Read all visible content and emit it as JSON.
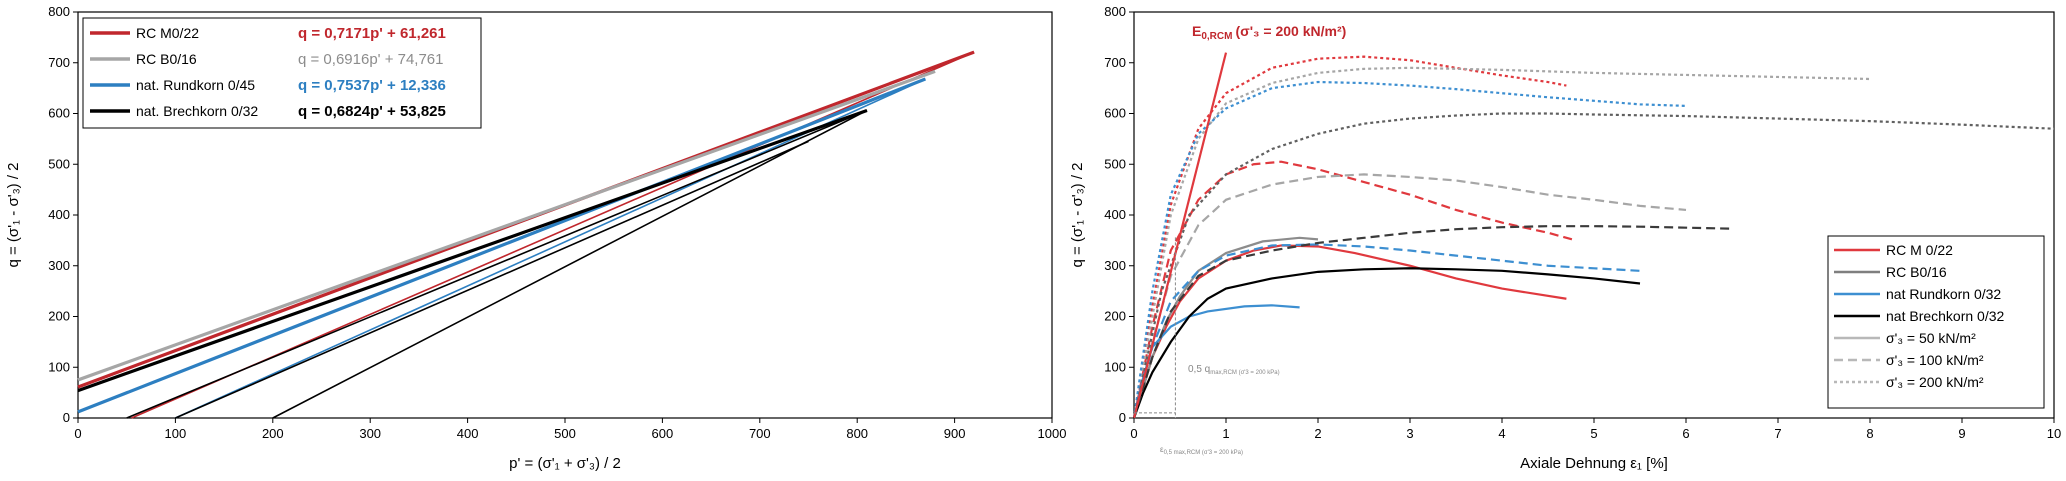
{
  "chart_data": [
    {
      "type": "line",
      "xlabel": "p' = (σ'₁ + σ'₃) / 2",
      "ylabel": "q = (σ'₁ - σ'₃) / 2",
      "xlim": [
        0,
        1000
      ],
      "ylim": [
        0,
        800
      ],
      "x_ticks": [
        "0",
        "100",
        "200",
        "300",
        "400",
        "500",
        "600",
        "700",
        "800",
        "900",
        "1000"
      ],
      "y_ticks": [
        "0",
        "100",
        "200",
        "300",
        "400",
        "500",
        "600",
        "700",
        "800"
      ],
      "grid": false,
      "legend_position": "top-left",
      "series": [
        {
          "name": "RC M0/22",
          "equation": "q = 0,7171p' + 61,261",
          "color": "#c0272d",
          "points": [
            [
              0,
              61
            ],
            [
              920,
              721
            ]
          ],
          "stress_paths": [
            [
              [
                55,
                0
              ],
              [
                920,
                721
              ]
            ]
          ]
        },
        {
          "name": "RC B0/16",
          "equation": "q = 0,6916p' + 74,761",
          "color": "#a6a6a6",
          "points": [
            [
              0,
              75
            ],
            [
              880,
              683
            ]
          ],
          "stress_paths": []
        },
        {
          "name": "nat. Rundkorn 0/45",
          "equation": "q = 0,7537p' + 12,336",
          "color": "#2d7fc1",
          "points": [
            [
              0,
              12
            ],
            [
              870,
              668
            ]
          ],
          "stress_paths": [
            [
              [
                100,
                0
              ],
              [
                870,
                668
              ]
            ]
          ]
        },
        {
          "name": "nat. Brechkorn 0/32",
          "equation": "q = 0,6824p' + 53,825",
          "color": "#000000",
          "points": [
            [
              0,
              54
            ],
            [
              810,
              606
            ]
          ],
          "stress_paths": [
            [
              [
                50,
                0
              ],
              [
                810,
                606
              ]
            ],
            [
              [
                100,
                0
              ],
              [
                750,
                545
              ]
            ],
            [
              [
                200,
                0
              ],
              [
                810,
                606
              ]
            ]
          ]
        }
      ]
    },
    {
      "type": "line",
      "xlabel": "Axiale Dehnung ε₁ [%]",
      "ylabel": "q = (σ'₁ - σ'₃) / 2",
      "xlim": [
        0,
        10
      ],
      "ylim": [
        0,
        800
      ],
      "x_ticks": [
        "0",
        "1",
        "2",
        "3",
        "4",
        "5",
        "6",
        "7",
        "8",
        "9",
        "10"
      ],
      "y_ticks": [
        "0",
        "100",
        "200",
        "300",
        "400",
        "500",
        "600",
        "700",
        "800"
      ],
      "grid": false,
      "legend_position": "bottom-right",
      "annotations": {
        "e_label": "E",
        "e_sub": "0,RCM",
        "e_cond": "(σ'₃ = 200 kN/m²)",
        "half_q_label": "0,5 q",
        "half_q_sub": "max,RCM (σ'3 = 200 kPa)",
        "eps_label": "ε",
        "eps_sub": "0,5 max,RCM (σ'3 = 200 kPa)"
      },
      "legend": {
        "materials": [
          {
            "name": "RC M 0/22",
            "color": "#e0393e"
          },
          {
            "name": "RC B0/16",
            "color": "#7f7f7f"
          },
          {
            "name": "nat Rundkorn 0/32",
            "color": "#3d8fd1"
          },
          {
            "name": "nat Brechkorn 0/32",
            "color": "#000000"
          }
        ],
        "stress_levels": [
          {
            "name": "σ'₃ = 50 kN/m²",
            "dash": "solid"
          },
          {
            "name": "σ'₃ = 100 kN/m²",
            "dash": "dashed"
          },
          {
            "name": "σ'₃ = 200 kN/m²",
            "dash": "dotted"
          }
        ]
      },
      "series": [
        {
          "material": "RC M 0/22",
          "stress": 50,
          "color": "#e0393e",
          "dash": "solid",
          "points": [
            [
              0,
              0
            ],
            [
              0.1,
              60
            ],
            [
              0.2,
              120
            ],
            [
              0.35,
              180
            ],
            [
              0.5,
              230
            ],
            [
              0.7,
              275
            ],
            [
              1.0,
              310
            ],
            [
              1.3,
              330
            ],
            [
              1.6,
              340
            ],
            [
              2.0,
              338
            ],
            [
              2.4,
              325
            ],
            [
              3.0,
              300
            ],
            [
              3.5,
              275
            ],
            [
              4.0,
              255
            ],
            [
              4.7,
              235
            ]
          ]
        },
        {
          "material": "RC M 0/22",
          "stress": 100,
          "color": "#e0393e",
          "dash": "dashed",
          "points": [
            [
              0,
              0
            ],
            [
              0.2,
              180
            ],
            [
              0.4,
              330
            ],
            [
              0.7,
              430
            ],
            [
              1.0,
              480
            ],
            [
              1.3,
              500
            ],
            [
              1.6,
              505
            ],
            [
              2.0,
              490
            ],
            [
              2.5,
              465
            ],
            [
              3.0,
              440
            ],
            [
              3.5,
              410
            ],
            [
              4.0,
              385
            ],
            [
              4.5,
              365
            ],
            [
              4.8,
              350
            ]
          ]
        },
        {
          "material": "RC M 0/22",
          "stress": 200,
          "color": "#e0393e",
          "dash": "dotted",
          "points": [
            [
              0,
              0
            ],
            [
              0.2,
              220
            ],
            [
              0.4,
              420
            ],
            [
              0.7,
              570
            ],
            [
              1.0,
              640
            ],
            [
              1.5,
              690
            ],
            [
              2.0,
              708
            ],
            [
              2.5,
              712
            ],
            [
              3.0,
              705
            ],
            [
              3.5,
              690
            ],
            [
              4.0,
              675
            ],
            [
              4.5,
              662
            ],
            [
              4.7,
              655
            ]
          ]
        },
        {
          "material": "RC B0/16",
          "stress": 50,
          "color": "#8c8c8c",
          "dash": "solid",
          "points": [
            [
              0,
              0
            ],
            [
              0.1,
              60
            ],
            [
              0.2,
              120
            ],
            [
              0.35,
              190
            ],
            [
              0.5,
              240
            ],
            [
              0.7,
              290
            ],
            [
              1.0,
              325
            ],
            [
              1.4,
              348
            ],
            [
              1.8,
              355
            ],
            [
              2.0,
              352
            ]
          ]
        },
        {
          "material": "RC B0/16",
          "stress": 100,
          "color": "#a6a6a6",
          "dash": "dashed",
          "points": [
            [
              0,
              0
            ],
            [
              0.2,
              150
            ],
            [
              0.4,
              280
            ],
            [
              0.7,
              380
            ],
            [
              1.0,
              430
            ],
            [
              1.5,
              460
            ],
            [
              2.0,
              475
            ],
            [
              2.5,
              480
            ],
            [
              3.0,
              475
            ],
            [
              3.5,
              468
            ],
            [
              4.0,
              455
            ],
            [
              4.5,
              440
            ],
            [
              5.0,
              430
            ],
            [
              5.5,
              418
            ],
            [
              6.0,
              410
            ]
          ]
        },
        {
          "material": "RC B0/16",
          "stress": 200,
          "color": "#a6a6a6",
          "dash": "dotted",
          "points": [
            [
              0,
              0
            ],
            [
              0.2,
              200
            ],
            [
              0.4,
              400
            ],
            [
              0.7,
              550
            ],
            [
              1.0,
              620
            ],
            [
              1.5,
              660
            ],
            [
              2.0,
              680
            ],
            [
              2.5,
              688
            ],
            [
              3.0,
              690
            ],
            [
              3.5,
              688
            ],
            [
              4.0,
              686
            ],
            [
              4.5,
              683
            ],
            [
              5.0,
              680
            ],
            [
              6.0,
              676
            ],
            [
              7.0,
              672
            ],
            [
              8.0,
              668
            ]
          ]
        },
        {
          "material": "nat Rundkorn 0/32",
          "stress": 50,
          "color": "#3d8fd1",
          "dash": "solid",
          "points": [
            [
              0,
              0
            ],
            [
              0.1,
              80
            ],
            [
              0.2,
              140
            ],
            [
              0.4,
              180
            ],
            [
              0.6,
              200
            ],
            [
              0.8,
              210
            ],
            [
              1.2,
              220
            ],
            [
              1.5,
              222
            ],
            [
              1.8,
              218
            ]
          ]
        },
        {
          "material": "nat Rundkorn 0/32",
          "stress": 100,
          "color": "#3d8fd1",
          "dash": "dashed",
          "points": [
            [
              0,
              0
            ],
            [
              0.2,
              140
            ],
            [
              0.4,
              230
            ],
            [
              0.7,
              290
            ],
            [
              1.0,
              320
            ],
            [
              1.5,
              340
            ],
            [
              2.0,
              342
            ],
            [
              2.5,
              338
            ],
            [
              3.0,
              330
            ],
            [
              3.5,
              320
            ],
            [
              4.0,
              310
            ],
            [
              4.5,
              300
            ],
            [
              5.0,
              295
            ],
            [
              5.5,
              290
            ]
          ]
        },
        {
          "material": "nat Rundkorn 0/32",
          "stress": 200,
          "color": "#3d8fd1",
          "dash": "dotted",
          "points": [
            [
              0,
              0
            ],
            [
              0.2,
              250
            ],
            [
              0.4,
              440
            ],
            [
              0.7,
              560
            ],
            [
              1.0,
              610
            ],
            [
              1.5,
              650
            ],
            [
              2.0,
              662
            ],
            [
              2.5,
              660
            ],
            [
              3.0,
              655
            ],
            [
              3.5,
              648
            ],
            [
              4.0,
              640
            ],
            [
              4.5,
              632
            ],
            [
              5.0,
              625
            ],
            [
              5.5,
              618
            ],
            [
              6.0,
              615
            ]
          ]
        },
        {
          "material": "nat Brechkorn 0/32",
          "stress": 50,
          "color": "#000000",
          "dash": "solid",
          "points": [
            [
              0,
              0
            ],
            [
              0.1,
              50
            ],
            [
              0.2,
              90
            ],
            [
              0.4,
              150
            ],
            [
              0.6,
              200
            ],
            [
              0.8,
              235
            ],
            [
              1.0,
              255
            ],
            [
              1.5,
              275
            ],
            [
              2.0,
              288
            ],
            [
              2.5,
              293
            ],
            [
              3.0,
              295
            ],
            [
              3.5,
              293
            ],
            [
              4.0,
              290
            ],
            [
              4.5,
              283
            ],
            [
              5.0,
              275
            ],
            [
              5.5,
              265
            ]
          ]
        },
        {
          "material": "nat Brechkorn 0/32",
          "stress": 100,
          "color": "#3a3a3a",
          "dash": "dashed",
          "points": [
            [
              0,
              0
            ],
            [
              0.2,
              120
            ],
            [
              0.4,
              210
            ],
            [
              0.7,
              280
            ],
            [
              1.0,
              310
            ],
            [
              1.5,
              330
            ],
            [
              2.0,
              345
            ],
            [
              2.5,
              355
            ],
            [
              3.0,
              365
            ],
            [
              3.5,
              372
            ],
            [
              4.0,
              376
            ],
            [
              4.5,
              378
            ],
            [
              5.0,
              378
            ],
            [
              5.5,
              377
            ],
            [
              6.0,
              375
            ],
            [
              6.5,
              373
            ]
          ]
        },
        {
          "material": "nat Brechkorn 0/32",
          "stress": 200,
          "color": "#606060",
          "dash": "dotted",
          "points": [
            [
              0,
              0
            ],
            [
              0.3,
              250
            ],
            [
              0.6,
              400
            ],
            [
              1.0,
              480
            ],
            [
              1.5,
              530
            ],
            [
              2.0,
              560
            ],
            [
              2.5,
              580
            ],
            [
              3.0,
              590
            ],
            [
              3.5,
              596
            ],
            [
              4.0,
              600
            ],
            [
              4.5,
              600
            ],
            [
              5.0,
              598
            ],
            [
              6.0,
              595
            ],
            [
              7.0,
              590
            ],
            [
              8.0,
              585
            ],
            [
              9.0,
              578
            ],
            [
              10.0,
              570
            ]
          ]
        },
        {
          "material": "E0,RCM",
          "stress": 200,
          "color": "#e0393e",
          "dash": "solid",
          "points": [
            [
              0,
              0
            ],
            [
              1.0,
              720
            ]
          ]
        }
      ]
    }
  ]
}
